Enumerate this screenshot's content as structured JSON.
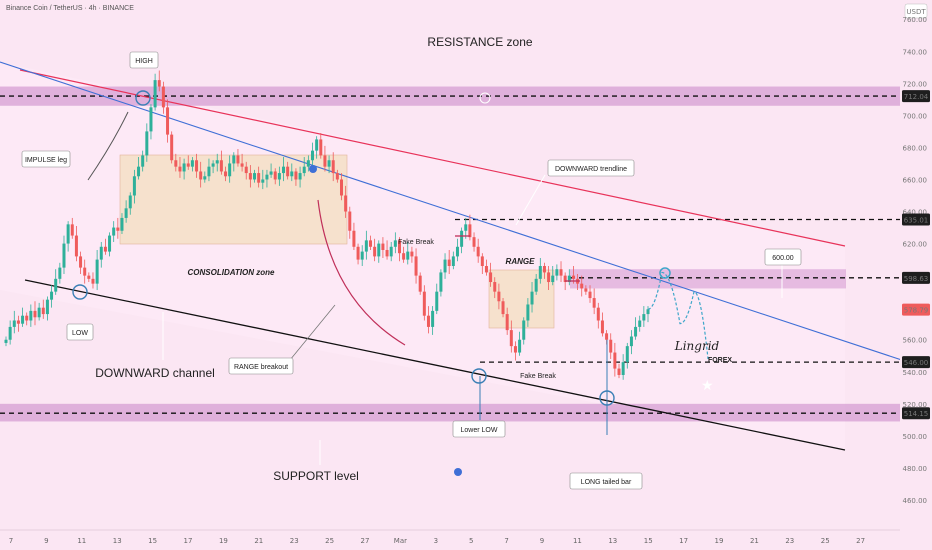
{
  "header": {
    "symbol_title": "Binance Coin / TetherUS · 4h · BINANCE"
  },
  "colors": {
    "bg": "#fbe6f3",
    "up": "#2eb09a",
    "down": "#ef5b5b",
    "resistance_line": "#e8335a",
    "blue_line": "#3f6fd6",
    "channel_line": "#111111",
    "zone": "#c983c7",
    "consolidation": "#f4dfc0",
    "projection": "#3ea6c9"
  },
  "axis": {
    "currency": "USDT",
    "y_ticks": [
      "760.00",
      "740.00",
      "720.00",
      "700.00",
      "680.00",
      "660.00",
      "640.00",
      "620.00",
      "600.00",
      "580.00",
      "560.00",
      "540.00",
      "520.00",
      "500.00",
      "480.00",
      "460.00"
    ],
    "x_ticks": [
      "7",
      "9",
      "11",
      "13",
      "15",
      "17",
      "19",
      "21",
      "23",
      "25",
      "27",
      "Mar",
      "3",
      "5",
      "7",
      "9",
      "11",
      "13",
      "15",
      "17",
      "19",
      "21",
      "23",
      "25",
      "27"
    ],
    "price_tags": [
      {
        "label": "712.04",
        "value": 712.04,
        "color": "#333333"
      },
      {
        "label": "635.01",
        "value": 635.01,
        "color": "#333333"
      },
      {
        "label": "598.63",
        "value": 598.63,
        "color": "#333333"
      },
      {
        "label": "578.79",
        "value": 578.79,
        "color": "#ef5b5b"
      },
      {
        "label": "546.00",
        "value": 546.0,
        "color": "#333333"
      },
      {
        "label": "514.15",
        "value": 514.15,
        "color": "#333333"
      }
    ]
  },
  "annotations": {
    "resistance": "RESISTANCE zone",
    "high": "HIGH",
    "impulse": "IMPULSE leg",
    "low": "LOW",
    "consolidation": "CONSOLIDATION zone",
    "downward_channel": "DOWNWARD channel",
    "range_breakout": "RANGE breakout",
    "fake_break_1": "Fake Break",
    "fake_break_2": "Fake Break",
    "range": "RANGE",
    "downward_trendline": "DOWNWARD trendline",
    "target": "600.00",
    "lower_low": "Lower LOW",
    "long_tail": "LONG tailed bar",
    "support": "SUPPORT level",
    "watermark": "Lingrid",
    "watermark_sub": "FOREX"
  },
  "chart_data": {
    "type": "candlestick",
    "title": "Binance Coin / TetherUS · 4h · BINANCE",
    "ylabel": "USDT",
    "ylim": [
      450,
      772
    ],
    "levels": {
      "resistance_zone": [
        706,
        718
      ],
      "resistance_mid": 712.04,
      "support_zone": [
        509,
        520
      ],
      "support_mid": 514.15,
      "level_635": 635.01,
      "level_598": 598.63,
      "level_546": 546.0,
      "last_price": 578.79
    },
    "key_points": [
      {
        "label": "LOW",
        "price": 595
      },
      {
        "label": "HIGH",
        "price": 725
      },
      {
        "label": "Lower LOW",
        "price": 550
      },
      {
        "label": "LONG tailed bar",
        "price": 532
      },
      {
        "label": "target",
        "price": 600.0
      }
    ],
    "projection_path": [
      579,
      602,
      570,
      590,
      548
    ],
    "closes": [
      560,
      568,
      572,
      570,
      575,
      572,
      578,
      574,
      580,
      576,
      585,
      590,
      598,
      605,
      620,
      632,
      625,
      612,
      605,
      600,
      598,
      595,
      610,
      618,
      615,
      625,
      630,
      628,
      636,
      642,
      650,
      662,
      668,
      675,
      690,
      705,
      722,
      718,
      705,
      688,
      672,
      668,
      665,
      670,
      668,
      672,
      665,
      660,
      662,
      668,
      670,
      672,
      665,
      662,
      670,
      675,
      670,
      668,
      664,
      660,
      664,
      658,
      660,
      663,
      665,
      660,
      664,
      668,
      662,
      665,
      660,
      664,
      668,
      672,
      678,
      685,
      675,
      668,
      672,
      664,
      660,
      650,
      640,
      628,
      618,
      610,
      615,
      622,
      618,
      612,
      620,
      616,
      612,
      618,
      622,
      614,
      610,
      615,
      612,
      600,
      590,
      575,
      568,
      578,
      590,
      602,
      610,
      606,
      612,
      618,
      628,
      632,
      624,
      618,
      612,
      606,
      602,
      596,
      590,
      584,
      576,
      566,
      556,
      552,
      560,
      572,
      582,
      590,
      598,
      606,
      602,
      596,
      600,
      604,
      600,
      596,
      600,
      598,
      595,
      592,
      590,
      586,
      580,
      572,
      564,
      560,
      552,
      542,
      538,
      546,
      556,
      562,
      568,
      572,
      576,
      579
    ]
  }
}
